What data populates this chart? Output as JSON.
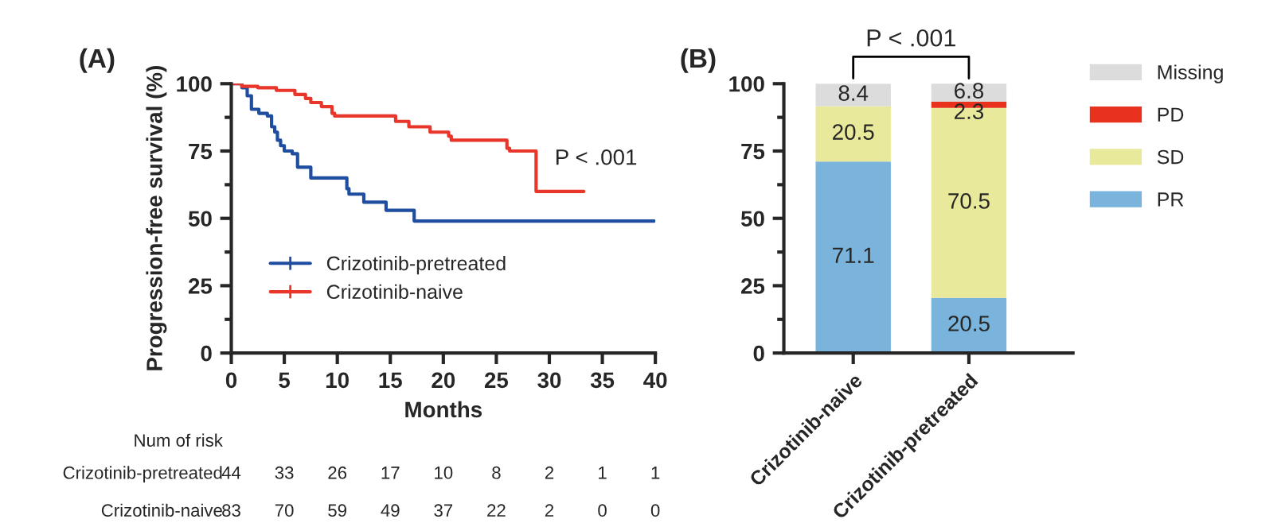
{
  "chart_data": [
    {
      "type": "step",
      "title": "(A)",
      "xlabel": "Months",
      "ylabel": "Progression-free survival (%)",
      "xlim": [
        0,
        40
      ],
      "xticks": [
        0,
        5,
        10,
        15,
        20,
        25,
        30,
        35,
        40
      ],
      "ylim": [
        0,
        100
      ],
      "yticks": [
        0,
        25,
        50,
        75,
        100
      ],
      "legend": "lower left",
      "marker": "none",
      "line_style": "solid",
      "series": [
        {
          "name": "Crizotinib-pretreated",
          "color": "#1f4ea1",
          "x": [
            0,
            1,
            1.5,
            1.9,
            2.6,
            3.4,
            3.8,
            4.1,
            4.35,
            4.65,
            5,
            5.75,
            6.25,
            7.5,
            10.9,
            11.1,
            12.5,
            14.6,
            17.25,
            39.9
          ],
          "values": [
            100,
            98.5,
            95.5,
            90.5,
            89,
            88,
            84,
            82,
            79,
            77,
            75,
            74,
            69,
            65,
            61,
            59,
            56,
            53,
            49,
            49
          ]
        },
        {
          "name": "Crizotinib-naive",
          "color": "#e8362a",
          "x": [
            0,
            1,
            2.5,
            4.25,
            6,
            7,
            7.5,
            8.5,
            9.5,
            9.75,
            15.5,
            16.75,
            18.75,
            20.5,
            20.75,
            26,
            26.25,
            28.75,
            33.25
          ],
          "values": [
            100,
            99,
            98.5,
            97.5,
            96,
            94.5,
            93,
            91.5,
            89,
            88,
            86,
            84,
            82,
            80.5,
            79,
            76,
            75,
            60,
            60
          ]
        }
      ],
      "annotations": [
        "P < .001",
        "Num of risk",
        "Crizotinib-pretreated",
        "44",
        "33",
        "26",
        "17",
        "10",
        "8",
        "2",
        "1",
        "1",
        "Crizotinib-naive",
        "83",
        "70",
        "59",
        "49",
        "37",
        "22",
        "2",
        "0",
        "0"
      ]
    },
    {
      "type": "bar",
      "stacked": true,
      "title": "(B)",
      "categories": [
        "Crizotinib-naive",
        "Crizotinib-pretreated"
      ],
      "ylim": [
        0,
        100
      ],
      "yticks": [
        0,
        25,
        50,
        75,
        100
      ],
      "legend": "right",
      "series": [
        {
          "name": "PR",
          "color": "#7ab4dc",
          "values": [
            71.1,
            20.5
          ],
          "value_labels": [
            "71.1",
            "20.5"
          ]
        },
        {
          "name": "SD",
          "color": "#e9e99b",
          "values": [
            20.5,
            70.5
          ],
          "value_labels": [
            "20.5",
            "70.5"
          ]
        },
        {
          "name": "PD",
          "color": "#e8321e",
          "values": [
            null,
            2.3
          ],
          "value_labels": [
            null,
            "2.3"
          ]
        },
        {
          "name": "Missing",
          "color": "#dcdcdc",
          "values": [
            8.4,
            6.8
          ],
          "value_labels": [
            "8.4",
            "6.8"
          ]
        }
      ],
      "annotations": [
        "P < .001"
      ]
    }
  ]
}
